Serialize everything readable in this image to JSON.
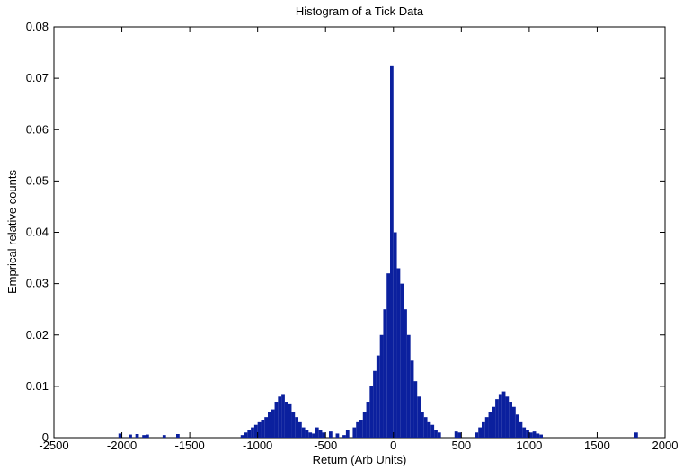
{
  "chart_data": {
    "type": "histogram",
    "title": "Histogram of a Tick Data",
    "xlabel": "Return (Arb Units)",
    "ylabel": "Emprical relative counts",
    "color": "#0b209e",
    "bins": [
      -2025,
      -2000,
      -1975,
      -1950,
      -1925,
      -1900,
      -1875,
      -1850,
      -1825,
      -1800,
      -1775,
      -1750,
      -1725,
      -1700,
      -1675,
      -1650,
      -1625,
      -1600,
      -1575,
      -1550,
      -1525,
      -1500,
      -1475,
      -1450,
      -1425,
      -1400,
      -1375,
      -1350,
      -1325,
      -1300,
      -1275,
      -1250,
      -1225,
      -1200,
      -1175,
      -1150,
      -1125,
      -1100,
      -1075,
      -1050,
      -1025,
      -1000,
      -975,
      -950,
      -925,
      -900,
      -875,
      -850,
      -825,
      -800,
      -775,
      -750,
      -725,
      -700,
      -675,
      -650,
      -625,
      -600,
      -575,
      -550,
      -525,
      -500,
      -475,
      -450,
      -425,
      -400,
      -375,
      -350,
      -325,
      -300,
      -275,
      -250,
      -225,
      -200,
      -175,
      -150,
      -125,
      -100,
      -75,
      -50,
      -25,
      0,
      25,
      50,
      75,
      100,
      125,
      150,
      175,
      200,
      225,
      250,
      275,
      300,
      325,
      350,
      375,
      400,
      425,
      450,
      475,
      500,
      525,
      550,
      575,
      600,
      625,
      650,
      675,
      700,
      725,
      750,
      775,
      800,
      825,
      850,
      875,
      900,
      925,
      950,
      975,
      1000,
      1025,
      1050,
      1075,
      1100,
      1125,
      1150,
      1175,
      1200,
      1225,
      1250,
      1275,
      1300,
      1325,
      1350,
      1375,
      1400,
      1425,
      1450,
      1475,
      1500,
      1525,
      1550,
      1575,
      1600,
      1625,
      1650,
      1675,
      1700,
      1725,
      1750,
      1775,
      1800
    ],
    "values": [
      0.0008,
      0,
      0,
      0.0006,
      0,
      0.0007,
      0,
      0.0005,
      0.0006,
      0,
      0,
      0,
      0,
      0.0005,
      0,
      0,
      0,
      0.0007,
      0,
      0,
      0,
      0,
      0,
      0,
      0,
      0,
      0,
      0,
      0,
      0,
      0,
      0,
      0,
      0,
      0,
      0,
      0.0005,
      0.001,
      0.0015,
      0.002,
      0.0025,
      0.003,
      0.0035,
      0.004,
      0.005,
      0.0055,
      0.007,
      0.008,
      0.0085,
      0.007,
      0.0065,
      0.005,
      0.004,
      0.003,
      0.002,
      0.0015,
      0.001,
      0.0008,
      0.002,
      0.0015,
      0.001,
      0,
      0.0012,
      0,
      0.0008,
      0,
      0.0005,
      0.0015,
      0,
      0.002,
      0.003,
      0.0035,
      0.005,
      0.007,
      0.01,
      0.013,
      0.016,
      0.02,
      0.025,
      0.032,
      0.0725,
      0.04,
      0.033,
      0.03,
      0.025,
      0.02,
      0.015,
      0.011,
      0.008,
      0.005,
      0.004,
      0.003,
      0.0025,
      0.0015,
      0.001,
      0,
      0,
      0,
      0,
      0.0012,
      0.001,
      0,
      0,
      0,
      0,
      0.001,
      0.002,
      0.003,
      0.004,
      0.005,
      0.006,
      0.0075,
      0.0085,
      0.009,
      0.008,
      0.007,
      0.006,
      0.0045,
      0.003,
      0.002,
      0.0015,
      0.001,
      0.0012,
      0.0008,
      0.0006,
      0,
      0,
      0,
      0,
      0,
      0,
      0,
      0,
      0,
      0,
      0,
      0,
      0,
      0,
      0,
      0,
      0,
      0,
      0,
      0,
      0,
      0,
      0,
      0,
      0,
      0,
      0,
      0.001
    ],
    "xlim": [
      -2500,
      2000
    ],
    "xticks": [
      -2500,
      -2000,
      -1500,
      -1000,
      -500,
      0,
      500,
      1000,
      1500,
      2000
    ],
    "ylim": [
      0,
      0.08
    ],
    "yticks": [
      0,
      0.01,
      0.02,
      0.03,
      0.04,
      0.05,
      0.06,
      0.07,
      0.08
    ]
  }
}
